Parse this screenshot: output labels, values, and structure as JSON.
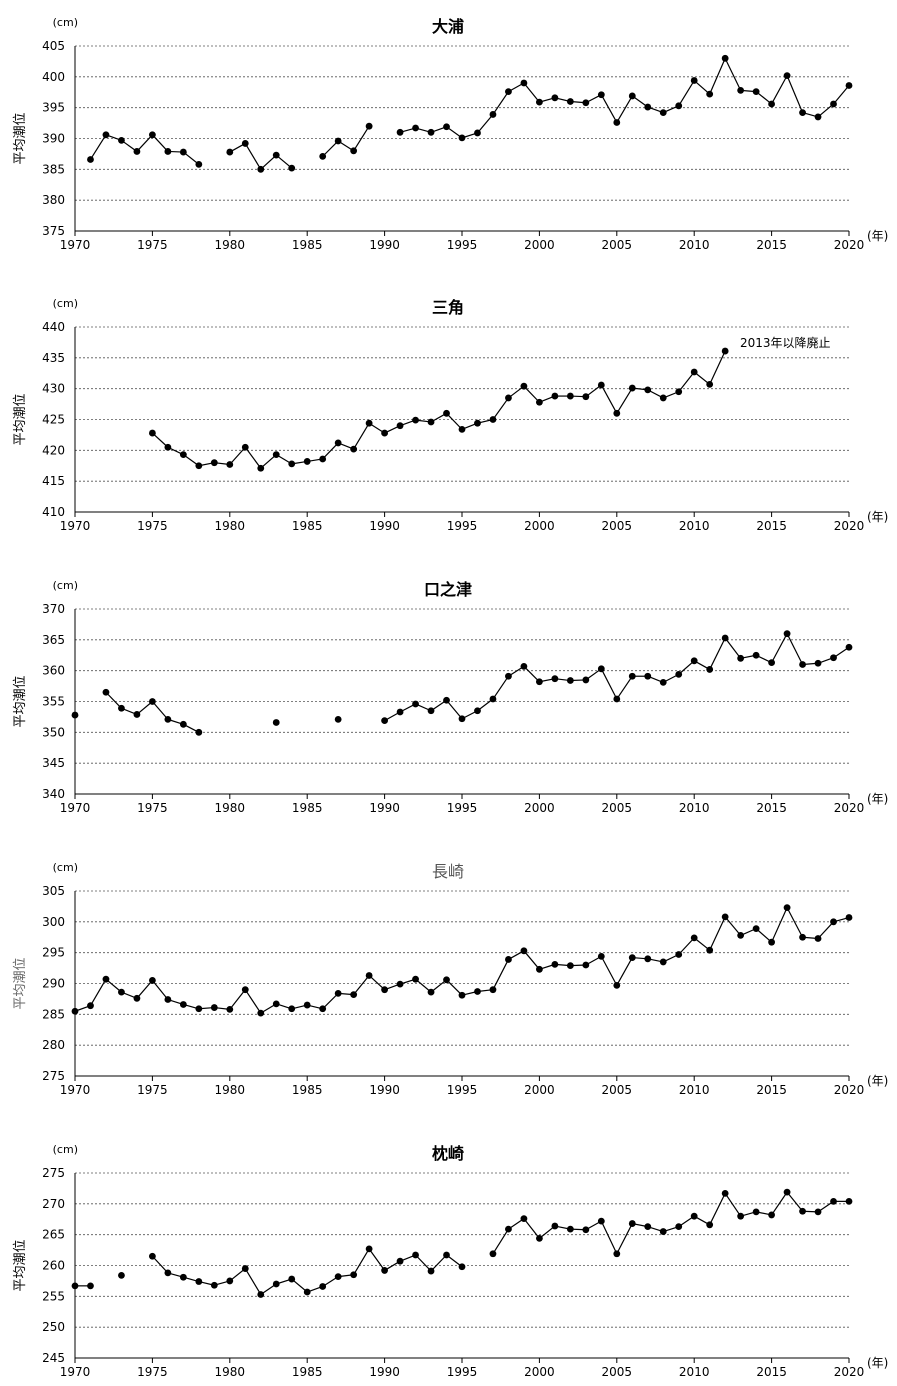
{
  "chart_data": [
    {
      "type": "line",
      "title": "大浦",
      "unit_label": "(cm)",
      "xlabel": "(年)",
      "ylabel": "平均潮位",
      "xlim": [
        1970,
        2020
      ],
      "ylim": [
        375,
        405
      ],
      "yticks": [
        375,
        380,
        385,
        390,
        395,
        400,
        405
      ],
      "xticks": [
        1970,
        1975,
        1980,
        1985,
        1990,
        1995,
        2000,
        2005,
        2010,
        2015,
        2020
      ],
      "grid": true,
      "x": [
        1970,
        1971,
        1972,
        1973,
        1974,
        1975,
        1976,
        1977,
        1978,
        1979,
        1980,
        1981,
        1982,
        1983,
        1984,
        1985,
        1986,
        1987,
        1988,
        1989,
        1990,
        1991,
        1992,
        1993,
        1994,
        1995,
        1996,
        1997,
        1998,
        1999,
        2000,
        2001,
        2002,
        2003,
        2004,
        2005,
        2006,
        2007,
        2008,
        2009,
        2010,
        2011,
        2012,
        2013,
        2014,
        2015,
        2016,
        2017,
        2018,
        2019,
        2020
      ],
      "y": [
        null,
        386.6,
        390.6,
        389.7,
        387.9,
        390.6,
        387.9,
        387.8,
        385.8,
        null,
        387.8,
        389.2,
        385.0,
        387.3,
        385.2,
        null,
        387.1,
        389.6,
        388.0,
        392.0,
        null,
        391.0,
        391.7,
        391.0,
        391.9,
        390.1,
        390.9,
        393.9,
        397.6,
        399.0,
        395.9,
        396.6,
        396.0,
        395.8,
        397.1,
        392.6,
        396.9,
        395.1,
        394.2,
        395.3,
        399.4,
        397.2,
        403.0,
        397.8,
        397.6,
        395.6,
        400.2,
        394.2,
        393.5,
        395.6,
        398.6
      ],
      "light": false
    },
    {
      "type": "line",
      "title": "三角",
      "unit_label": "(cm)",
      "xlabel": "(年)",
      "ylabel": "平均潮位",
      "xlim": [
        1970,
        2020
      ],
      "ylim": [
        410,
        440
      ],
      "yticks": [
        410,
        415,
        420,
        425,
        430,
        435,
        440
      ],
      "xticks": [
        1970,
        1975,
        1980,
        1985,
        1990,
        1995,
        2000,
        2005,
        2010,
        2015,
        2020
      ],
      "grid": true,
      "annotation": "2013年以降廃止",
      "x": [
        1970,
        1971,
        1972,
        1973,
        1974,
        1975,
        1976,
        1977,
        1978,
        1979,
        1980,
        1981,
        1982,
        1983,
        1984,
        1985,
        1986,
        1987,
        1988,
        1989,
        1990,
        1991,
        1992,
        1993,
        1994,
        1995,
        1996,
        1997,
        1998,
        1999,
        2000,
        2001,
        2002,
        2003,
        2004,
        2005,
        2006,
        2007,
        2008,
        2009,
        2010,
        2011,
        2012,
        2013,
        2014,
        2015,
        2016,
        2017,
        2018,
        2019,
        2020
      ],
      "y": [
        null,
        null,
        null,
        null,
        null,
        422.8,
        420.5,
        419.3,
        417.5,
        418.0,
        417.7,
        420.5,
        417.1,
        419.3,
        417.8,
        418.2,
        418.6,
        421.2,
        420.2,
        424.4,
        422.8,
        424.0,
        424.9,
        424.6,
        426.0,
        423.4,
        424.4,
        425.0,
        428.5,
        430.4,
        427.8,
        428.8,
        428.8,
        428.7,
        430.6,
        426.0,
        430.1,
        429.8,
        428.5,
        429.5,
        432.7,
        430.7,
        436.1,
        null,
        null,
        null,
        null,
        null,
        null,
        null,
        null
      ],
      "light": false
    },
    {
      "type": "line",
      "title": "口之津",
      "unit_label": "(cm)",
      "xlabel": "(年)",
      "ylabel": "平均潮位",
      "xlim": [
        1970,
        2020
      ],
      "ylim": [
        340,
        370
      ],
      "yticks": [
        340,
        345,
        350,
        355,
        360,
        365,
        370
      ],
      "xticks": [
        1970,
        1975,
        1980,
        1985,
        1990,
        1995,
        2000,
        2005,
        2010,
        2015,
        2020
      ],
      "grid": true,
      "x": [
        1970,
        1971,
        1972,
        1973,
        1974,
        1975,
        1976,
        1977,
        1978,
        1979,
        1980,
        1981,
        1982,
        1983,
        1984,
        1985,
        1986,
        1987,
        1988,
        1989,
        1990,
        1991,
        1992,
        1993,
        1994,
        1995,
        1996,
        1997,
        1998,
        1999,
        2000,
        2001,
        2002,
        2003,
        2004,
        2005,
        2006,
        2007,
        2008,
        2009,
        2010,
        2011,
        2012,
        2013,
        2014,
        2015,
        2016,
        2017,
        2018,
        2019,
        2020
      ],
      "y": [
        352.8,
        null,
        356.5,
        353.9,
        352.9,
        355.0,
        352.1,
        351.3,
        350.0,
        null,
        null,
        null,
        null,
        351.6,
        null,
        null,
        null,
        352.1,
        null,
        null,
        351.9,
        353.3,
        354.6,
        353.5,
        355.2,
        352.2,
        353.5,
        355.4,
        359.1,
        360.7,
        358.2,
        358.7,
        358.4,
        358.5,
        360.3,
        355.4,
        359.1,
        359.1,
        358.1,
        359.4,
        361.6,
        360.2,
        365.3,
        362.0,
        362.5,
        361.3,
        366.0,
        361.0,
        361.2,
        362.1,
        363.8
      ],
      "light": false
    },
    {
      "type": "line",
      "title": "長崎",
      "unit_label": "(cm)",
      "xlabel": "(年)",
      "ylabel": "平均潮位",
      "xlim": [
        1970,
        2020
      ],
      "ylim": [
        275,
        305
      ],
      "yticks": [
        275,
        280,
        285,
        290,
        295,
        300,
        305
      ],
      "xticks": [
        1970,
        1975,
        1980,
        1985,
        1990,
        1995,
        2000,
        2005,
        2010,
        2015,
        2020
      ],
      "grid": true,
      "x": [
        1970,
        1971,
        1972,
        1973,
        1974,
        1975,
        1976,
        1977,
        1978,
        1979,
        1980,
        1981,
        1982,
        1983,
        1984,
        1985,
        1986,
        1987,
        1988,
        1989,
        1990,
        1991,
        1992,
        1993,
        1994,
        1995,
        1996,
        1997,
        1998,
        1999,
        2000,
        2001,
        2002,
        2003,
        2004,
        2005,
        2006,
        2007,
        2008,
        2009,
        2010,
        2011,
        2012,
        2013,
        2014,
        2015,
        2016,
        2017,
        2018,
        2019,
        2020
      ],
      "y": [
        285.5,
        286.4,
        290.7,
        288.6,
        287.6,
        290.5,
        287.4,
        286.6,
        285.9,
        286.1,
        285.8,
        289.0,
        285.2,
        286.7,
        285.9,
        286.5,
        285.9,
        288.4,
        288.2,
        291.3,
        289.0,
        289.9,
        290.7,
        288.6,
        290.6,
        288.1,
        288.7,
        289.0,
        293.9,
        295.3,
        292.3,
        293.1,
        292.9,
        293.0,
        294.4,
        289.7,
        294.2,
        294.0,
        293.5,
        294.7,
        297.4,
        295.4,
        300.8,
        297.8,
        298.9,
        296.7,
        302.3,
        297.5,
        297.3,
        300.0,
        300.7
      ],
      "light": true
    },
    {
      "type": "line",
      "title": "枕崎",
      "unit_label": "(cm)",
      "xlabel": "(年)",
      "ylabel": "平均潮位",
      "xlim": [
        1970,
        2020
      ],
      "ylim": [
        245,
        275
      ],
      "yticks": [
        245,
        250,
        255,
        260,
        265,
        270,
        275
      ],
      "xticks": [
        1970,
        1975,
        1980,
        1985,
        1990,
        1995,
        2000,
        2005,
        2010,
        2015,
        2020
      ],
      "grid": true,
      "x": [
        1970,
        1971,
        1972,
        1973,
        1974,
        1975,
        1976,
        1977,
        1978,
        1979,
        1980,
        1981,
        1982,
        1983,
        1984,
        1985,
        1986,
        1987,
        1988,
        1989,
        1990,
        1991,
        1992,
        1993,
        1994,
        1995,
        1996,
        1997,
        1998,
        1999,
        2000,
        2001,
        2002,
        2003,
        2004,
        2005,
        2006,
        2007,
        2008,
        2009,
        2010,
        2011,
        2012,
        2013,
        2014,
        2015,
        2016,
        2017,
        2018,
        2019,
        2020
      ],
      "y": [
        256.7,
        256.7,
        null,
        258.4,
        null,
        261.5,
        258.8,
        258.1,
        257.4,
        256.8,
        257.5,
        259.5,
        255.3,
        257.0,
        257.8,
        255.7,
        256.6,
        258.2,
        258.5,
        262.7,
        259.2,
        260.7,
        261.7,
        259.1,
        261.7,
        259.8,
        null,
        261.9,
        265.9,
        267.6,
        264.4,
        266.4,
        265.9,
        265.8,
        267.2,
        261.9,
        266.8,
        266.3,
        265.5,
        266.3,
        268.0,
        266.6,
        271.7,
        268.0,
        268.7,
        268.2,
        271.9,
        268.8,
        268.7,
        270.4,
        270.4
      ],
      "light": false
    }
  ]
}
